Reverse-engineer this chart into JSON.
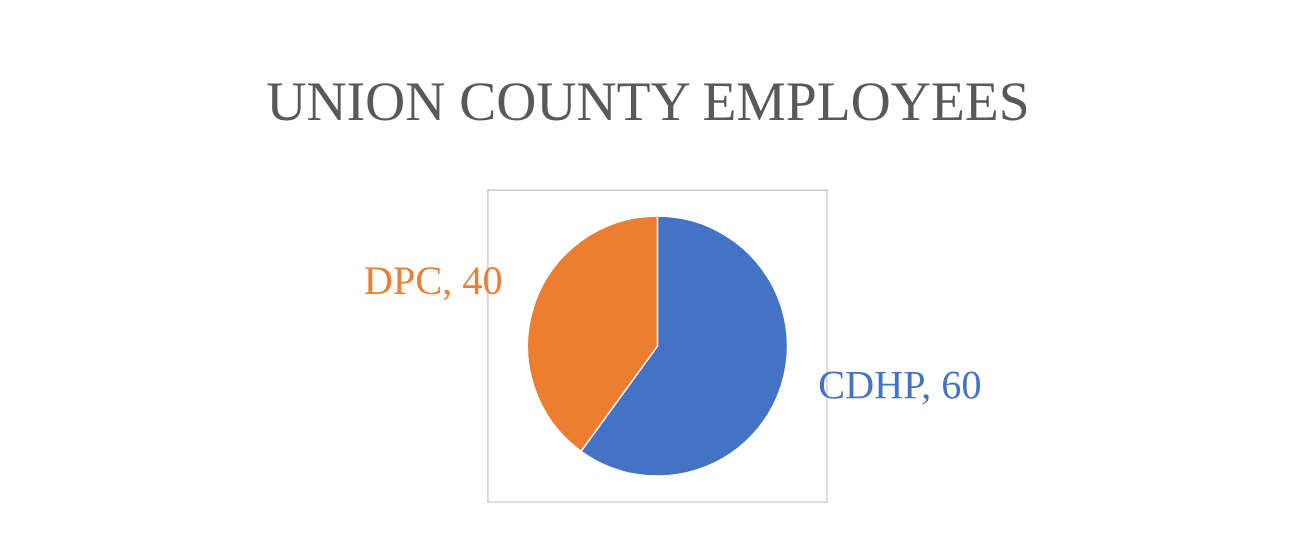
{
  "chart_data": {
    "type": "pie",
    "title": "UNION COUNTY EMPLOYEES",
    "values": [
      60,
      40
    ],
    "value_labels": [
      "CDHP, 60",
      "DPC, 40"
    ],
    "colors": [
      "#4472c4",
      "#ed7d31"
    ]
  }
}
